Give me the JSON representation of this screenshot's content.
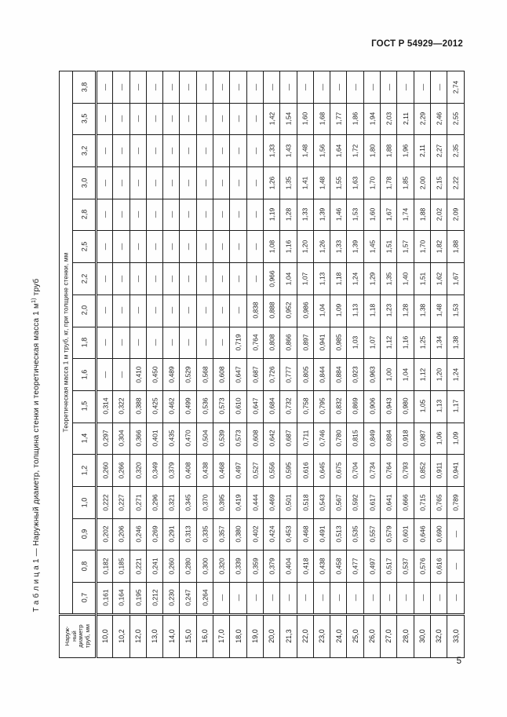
{
  "page": {
    "doc_code": "ГОСТ Р 54929—2012",
    "page_number": "5"
  },
  "title": {
    "label": "Т а б л и ц а  1 — ",
    "main": "Наружный диаметр, толщина стенки и теоретическая масса 1 м",
    "footnote_marker": "1)",
    "tail": " труб"
  },
  "table": {
    "row_header_label_lines": [
      "Наруж-",
      "ный",
      "диаметр",
      "труб, мм"
    ],
    "col_span_header": "Теоретическая масса 1 м труб, кг, при толщине стенки, мм",
    "diameters": [
      "10,0",
      "10,2",
      "12,0",
      "13,0",
      "14,0",
      "15,0",
      "16,0",
      "17,0",
      "18,0",
      "19,0",
      "20,0",
      "21,3",
      "22,0",
      "23,0",
      "24,0",
      "25,0",
      "26,0",
      "27,0",
      "28,0",
      "30,0",
      "32,0",
      "33,0"
    ],
    "rows": [
      {
        "thickness": "3,8",
        "values": [
          "—",
          "—",
          "—",
          "—",
          "—",
          "—",
          "—",
          "—",
          "—",
          "—",
          "—",
          "—",
          "—",
          "—",
          "—",
          "—",
          "—",
          "—",
          "—",
          "—",
          "—",
          "2,74"
        ]
      },
      {
        "thickness": "3,5",
        "values": [
          "—",
          "—",
          "—",
          "—",
          "—",
          "—",
          "—",
          "—",
          "—",
          "—",
          "1,42",
          "1,54",
          "1,60",
          "1,68",
          "1,77",
          "1,86",
          "1,94",
          "2,03",
          "2,11",
          "2,29",
          "2,46",
          "2,55"
        ]
      },
      {
        "thickness": "3,2",
        "values": [
          "—",
          "—",
          "—",
          "—",
          "—",
          "—",
          "—",
          "—",
          "—",
          "—",
          "1,33",
          "1,43",
          "1,48",
          "1,56",
          "1,64",
          "1,72",
          "1,80",
          "1,88",
          "1,96",
          "2,11",
          "2,27",
          "2,35"
        ]
      },
      {
        "thickness": "3,0",
        "values": [
          "—",
          "—",
          "—",
          "—",
          "—",
          "—",
          "—",
          "—",
          "—",
          "—",
          "1,26",
          "1,35",
          "1,41",
          "1,48",
          "1,55",
          "1,63",
          "1,70",
          "1,78",
          "1,85",
          "2,00",
          "2,15",
          "2,22"
        ]
      },
      {
        "thickness": "2,8",
        "values": [
          "—",
          "—",
          "—",
          "—",
          "—",
          "—",
          "—",
          "—",
          "—",
          "—",
          "1,19",
          "1,28",
          "1,33",
          "1,39",
          "1,46",
          "1,53",
          "1,60",
          "1,67",
          "1,74",
          "1,88",
          "2,02",
          "2,09"
        ]
      },
      {
        "thickness": "2,5",
        "values": [
          "—",
          "—",
          "—",
          "—",
          "—",
          "—",
          "—",
          "—",
          "—",
          "—",
          "1,08",
          "1,16",
          "1,20",
          "1,26",
          "1,33",
          "1,39",
          "1,45",
          "1,51",
          "1,57",
          "1,70",
          "1,82",
          "1,88"
        ]
      },
      {
        "thickness": "2,2",
        "values": [
          "—",
          "—",
          "—",
          "—",
          "—",
          "—",
          "—",
          "—",
          "—",
          "—",
          "0,966",
          "1,04",
          "1,07",
          "1,13",
          "1,18",
          "1,24",
          "1,29",
          "1,35",
          "1,40",
          "1,51",
          "1,62",
          "1,67"
        ]
      },
      {
        "thickness": "2,0",
        "values": [
          "—",
          "—",
          "—",
          "—",
          "—",
          "—",
          "—",
          "—",
          "—",
          "0,838",
          "0,888",
          "0,952",
          "0,986",
          "1,04",
          "1,09",
          "1,13",
          "1,18",
          "1,23",
          "1,28",
          "1,38",
          "1,48",
          "1,53"
        ]
      },
      {
        "thickness": "1,8",
        "values": [
          "—",
          "—",
          "—",
          "—",
          "—",
          "—",
          "—",
          "—",
          "0,719",
          "0,764",
          "0,808",
          "0,866",
          "0,897",
          "0,941",
          "0,985",
          "1,03",
          "1,07",
          "1,12",
          "1,16",
          "1,25",
          "1,34",
          "1,38"
        ]
      },
      {
        "thickness": "1,6",
        "values": [
          "—",
          "—",
          "0,410",
          "0,450",
          "0,489",
          "0,529",
          "0,568",
          "0,608",
          "0,647",
          "0,687",
          "0,726",
          "0,777",
          "0,805",
          "0,844",
          "0,884",
          "0,923",
          "0,963",
          "1,00",
          "1,04",
          "1,12",
          "1,20",
          "1,24"
        ]
      },
      {
        "thickness": "1,5",
        "values": [
          "0,314",
          "0,322",
          "0,388",
          "0,425",
          "0,462",
          "0,499",
          "0,536",
          "0,573",
          "0,610",
          "0,647",
          "0,684",
          "0,732",
          "0,758",
          "0,795",
          "0,832",
          "0,869",
          "0,906",
          "0,943",
          "0,980",
          "1,05",
          "1,13",
          "1,17"
        ]
      },
      {
        "thickness": "1,4",
        "values": [
          "0,297",
          "0,304",
          "0,366",
          "0,401",
          "0,435",
          "0,470",
          "0,504",
          "0,539",
          "0,573",
          "0,608",
          "0,642",
          "0,687",
          "0,711",
          "0,746",
          "0,780",
          "0,815",
          "0,849",
          "0,884",
          "0,918",
          "0,987",
          "1,06",
          "1,09"
        ]
      },
      {
        "thickness": "1,2",
        "values": [
          "0,260",
          "0,266",
          "0,320",
          "0,349",
          "0,379",
          "0,408",
          "0,438",
          "0,468",
          "0,497",
          "0,527",
          "0,556",
          "0,595",
          "0,616",
          "0,645",
          "0,675",
          "0,704",
          "0,734",
          "0,764",
          "0,793",
          "0,852",
          "0,911",
          "0,941"
        ]
      },
      {
        "thickness": "1,0",
        "values": [
          "0,222",
          "0,227",
          "0,271",
          "0,296",
          "0,321",
          "0,345",
          "0,370",
          "0,395",
          "0,419",
          "0,444",
          "0,469",
          "0,501",
          "0,518",
          "0,543",
          "0,567",
          "0,592",
          "0,617",
          "0,641",
          "0,666",
          "0,715",
          "0,765",
          "0,789"
        ]
      },
      {
        "thickness": "0,9",
        "values": [
          "0,202",
          "0,206",
          "0,246",
          "0,269",
          "0,291",
          "0,313",
          "0,335",
          "0,357",
          "0,380",
          "0,402",
          "0,424",
          "0,453",
          "0,468",
          "0,491",
          "0,513",
          "0,535",
          "0,557",
          "0,579",
          "0,601",
          "0,646",
          "0,690",
          "—"
        ]
      },
      {
        "thickness": "0,8",
        "values": [
          "0,182",
          "0,185",
          "0,221",
          "0,241",
          "0,260",
          "0,280",
          "0,300",
          "0,320",
          "0,339",
          "0,359",
          "0,379",
          "0,404",
          "0,418",
          "0,438",
          "0,458",
          "0,477",
          "0,497",
          "0,517",
          "0,537",
          "0,576",
          "0,616",
          "—"
        ]
      },
      {
        "thickness": "0,7",
        "values": [
          "0,161",
          "0,164",
          "0,195",
          "0,212",
          "0,230",
          "0,247",
          "0,264",
          "—",
          "—",
          "—",
          "—",
          "—",
          "—",
          "—",
          "—",
          "—",
          "—",
          "—",
          "—",
          "—",
          "—",
          "—"
        ]
      }
    ]
  }
}
